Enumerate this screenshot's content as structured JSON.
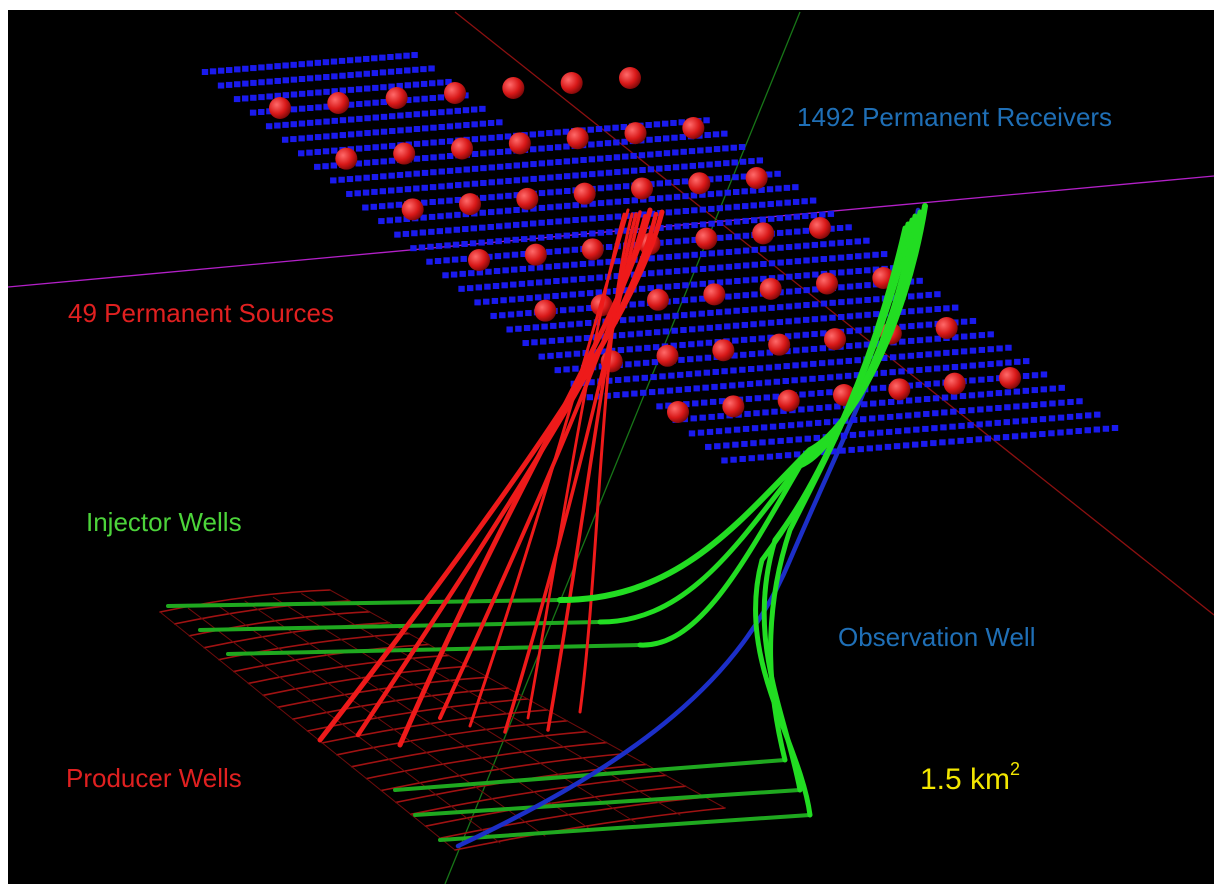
{
  "labels": {
    "receivers": "1492 Permanent Receivers",
    "sources": "49 Permanent Sources",
    "injector": "Injector Wells",
    "observation": "Observation Well",
    "producer": "Producer Wells",
    "area_value": "1.5 km",
    "area_exponent": "2"
  },
  "counts": {
    "receivers": 1492,
    "sources": 49
  },
  "colors": {
    "background": "#000000",
    "receivers_label": "#1f6fb6",
    "sources_label": "#e02020",
    "injector_label": "#4cd43a",
    "observation_label": "#1f6fb6",
    "producer_label": "#e02020",
    "area_label": "#f2e600",
    "receiver_dot": "#1a1aee",
    "source_sphere": "#d81818",
    "injector_well": "#22dd22",
    "producer_well": "#ee1a1a",
    "observation_well": "#1c2fc8",
    "axis_red": "#8b1010",
    "axis_green": "#177517",
    "axis_magenta": "#b320c8"
  }
}
